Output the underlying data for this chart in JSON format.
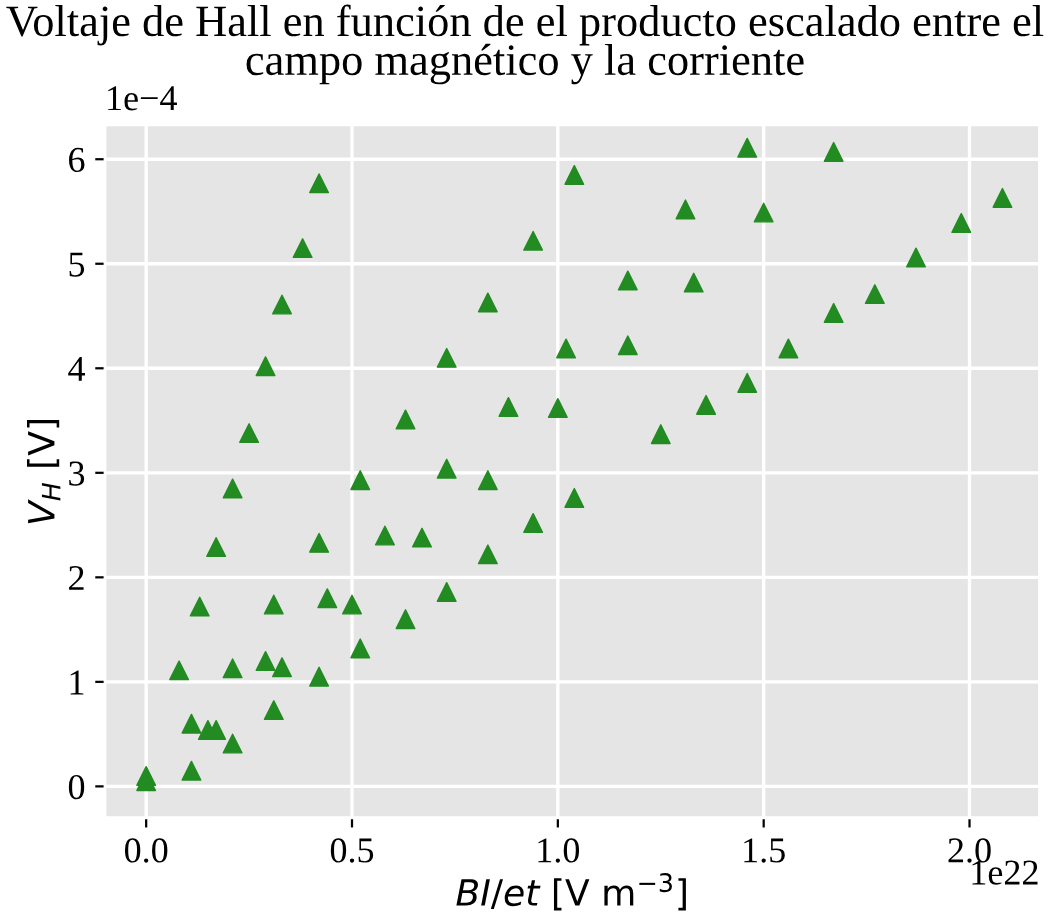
{
  "chart_data": {
    "type": "scatter",
    "title": "Voltaje de Hall en función de el producto escalado entre el\ncampo magnético y la corriente",
    "xlabel": "BI/et [V m$^{−3}$]",
    "ylabel": "V$_{H}$ [V]",
    "annotations": [
      "1e−4",
      "1e22"
    ],
    "marker": "triangle",
    "grid": true,
    "xlim": [
      -0.1,
      2.17
    ],
    "ylim": [
      -0.3,
      6.33
    ],
    "xticks": [
      {
        "value": 0,
        "label": "0.0"
      },
      0.5,
      {
        "value": 1,
        "label": "1.0"
      },
      1.5,
      {
        "value": 2,
        "label": "2.0"
      }
    ],
    "yticks": [
      0,
      1,
      2,
      3,
      4,
      5,
      6
    ],
    "series": [
      {
        "color": "#228b22",
        "x": [
          0,
          0,
          0.11,
          0.11,
          0.08,
          0.13,
          0.17,
          0.21,
          0.25,
          0.29,
          0.33,
          0.38,
          0.42,
          0.15,
          0.17,
          0.21,
          0.21,
          0.29,
          0.33,
          0.31,
          0.31,
          0.42,
          0.42,
          0.44,
          0.5,
          0.52,
          0.52,
          0.58,
          0.67,
          0.63,
          0.63,
          0.73,
          0.73,
          0.73,
          0.83,
          0.83,
          0.83,
          0.88,
          0.94,
          0.94,
          1.0,
          1.04,
          1.04,
          1.02,
          1.17,
          1.17,
          1.25,
          1.31,
          1.33,
          1.36,
          1.46,
          1.46,
          1.5,
          1.56,
          1.67,
          1.67,
          1.77,
          1.87,
          1.98,
          2.08
        ],
        "values": [
          0.05,
          0.1,
          0.15,
          0.6,
          1.11,
          1.72,
          2.29,
          2.85,
          3.38,
          4.02,
          4.61,
          5.15,
          5.77,
          0.54,
          0.54,
          0.41,
          1.13,
          1.2,
          1.14,
          0.73,
          1.74,
          1.05,
          2.33,
          1.8,
          1.74,
          1.32,
          2.93,
          2.4,
          2.38,
          1.6,
          3.51,
          1.86,
          3.04,
          4.1,
          2.22,
          2.93,
          4.63,
          3.63,
          2.52,
          5.22,
          3.62,
          5.85,
          2.76,
          4.19,
          4.84,
          4.22,
          3.37,
          5.52,
          4.82,
          3.65,
          6.11,
          3.86,
          5.49,
          4.19,
          6.07,
          4.53,
          4.71,
          5.06,
          5.39,
          5.63
        ]
      }
    ]
  }
}
